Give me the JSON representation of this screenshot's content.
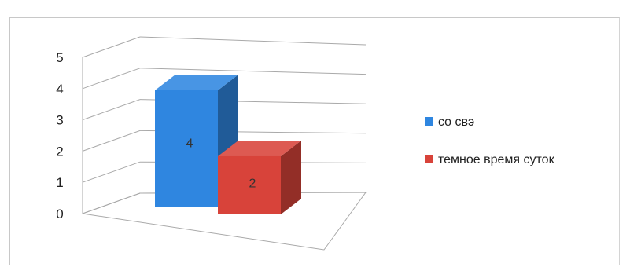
{
  "chart_data": {
    "type": "bar",
    "style": "3d-clustered-column",
    "title": "",
    "xlabel": "",
    "ylabel": "",
    "ylim": [
      0,
      5
    ],
    "yticks": [
      0,
      1,
      2,
      3,
      4,
      5
    ],
    "grid": true,
    "legend_position": "right",
    "series": [
      {
        "name": "со свэ",
        "values": [
          4
        ],
        "color": "#2f86e0",
        "data_label": "4"
      },
      {
        "name": "темное время суток",
        "values": [
          2
        ],
        "color": "#d8433a",
        "data_label": "2"
      }
    ]
  }
}
